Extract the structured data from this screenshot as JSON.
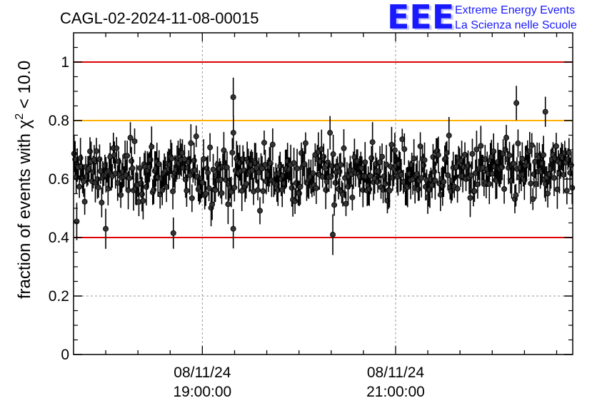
{
  "title": "CAGL-02-2024-11-08-00015",
  "logo": {
    "letters": "EEE",
    "line1": "Extreme Energy Events",
    "line2": "La Scienza nelle Scuole",
    "color": "#1a1aff"
  },
  "chart_data": {
    "type": "scatter",
    "ylabel_prefix": "fraction of events with ",
    "ylabel_chi": "χ",
    "ylabel_sup": "2",
    "ylabel_suffix": " < 10.0",
    "ylim": [
      0,
      1.1
    ],
    "yticks": [
      "0",
      "0.2",
      "0.4",
      "0.6",
      "0.8",
      "1"
    ],
    "grid": true,
    "x_range_hours": [
      17.667,
      22.833
    ],
    "xticks": [
      {
        "hour": 19,
        "date": "08/11/24",
        "time": "19:00:00"
      },
      {
        "hour": 21,
        "date": "08/11/24",
        "time": "21:00:00"
      }
    ],
    "reference_lines": [
      {
        "y": 1.0,
        "color": "#e00000"
      },
      {
        "y": 0.8,
        "color": "#ffb000"
      },
      {
        "y": 0.4,
        "color": "#e00000"
      }
    ],
    "series_color": "#000000",
    "points_count": 470,
    "mean": 0.62,
    "highlighted_points": [
      {
        "x_hour": 19.32,
        "y": 0.88
      },
      {
        "x_hour": 19.32,
        "y": 0.43
      },
      {
        "x_hour": 18.7,
        "y": 0.415
      },
      {
        "x_hour": 20.35,
        "y": 0.41
      },
      {
        "x_hour": 22.25,
        "y": 0.86
      },
      {
        "x_hour": 22.55,
        "y": 0.83
      },
      {
        "x_hour": 18.0,
        "y": 0.43
      },
      {
        "x_hour": 17.7,
        "y": 0.455
      }
    ]
  }
}
